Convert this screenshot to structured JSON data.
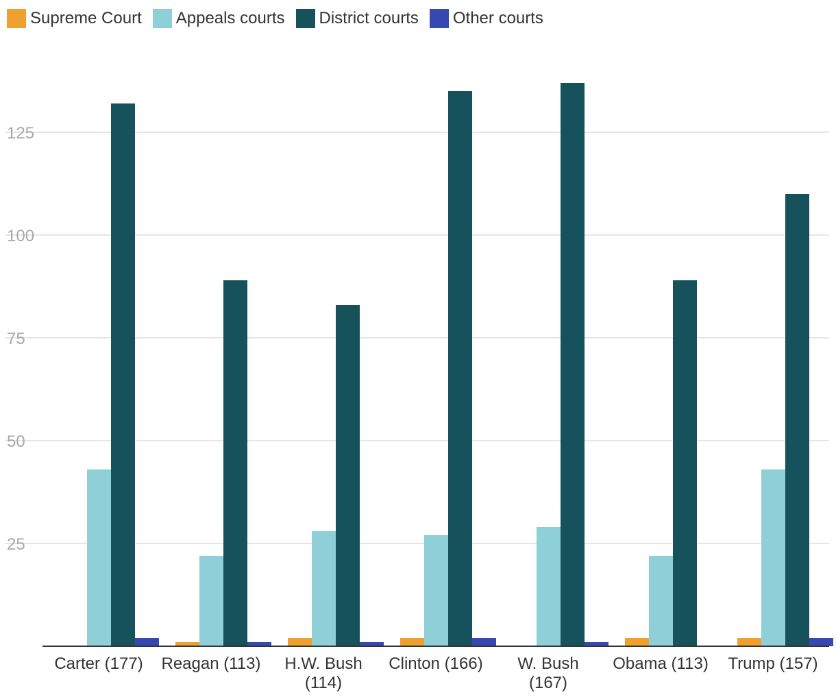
{
  "chart_data": {
    "type": "bar",
    "title": "",
    "xlabel": "",
    "ylabel": "",
    "ylim": [
      0,
      140
    ],
    "yticks": [
      25,
      50,
      75,
      100,
      125
    ],
    "grid": true,
    "legend_position": "top-left",
    "categories": [
      [
        "Carter (177)"
      ],
      [
        "Reagan (113)"
      ],
      [
        "H.W. Bush",
        "(114)"
      ],
      [
        "Clinton (166)"
      ],
      [
        "W. Bush",
        "(167)"
      ],
      [
        "Obama (113)"
      ],
      [
        "Trump (157)"
      ]
    ],
    "series": [
      {
        "name": "Supreme Court",
        "color": "#f0a030",
        "values": [
          0,
          1,
          2,
          2,
          0,
          2,
          2
        ]
      },
      {
        "name": "Appeals courts",
        "color": "#8ecfd8",
        "values": [
          43,
          22,
          28,
          27,
          29,
          22,
          43
        ]
      },
      {
        "name": "District courts",
        "color": "#16525b",
        "values": [
          132,
          89,
          83,
          135,
          137,
          89,
          110
        ]
      },
      {
        "name": "Other courts",
        "color": "#3748b0",
        "values": [
          2,
          1,
          1,
          2,
          1,
          0,
          2
        ]
      }
    ]
  }
}
